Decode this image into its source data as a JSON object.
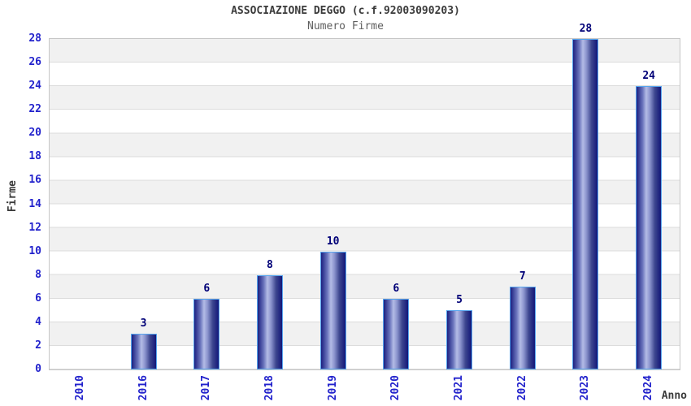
{
  "chart_data": {
    "type": "bar",
    "title": "ASSOCIAZIONE DEGGO (c.f.92003090203)",
    "subtitle": "Numero Firme",
    "categories": [
      "2010",
      "2016",
      "2017",
      "2018",
      "2019",
      "2020",
      "2021",
      "2022",
      "2023",
      "2024"
    ],
    "values": [
      0,
      3,
      6,
      8,
      10,
      6,
      5,
      7,
      28,
      24
    ],
    "xlabel": "Anno",
    "ylabel": "Firme",
    "ylim": [
      0,
      28
    ],
    "ytick_step": 2,
    "grid": "horizontal-bands-alternating",
    "legend": "none",
    "colors": {
      "bar_edge": "#1c2080",
      "bar_highlight": "#b4bce6",
      "bar_border": "#55a4ee",
      "value_label": "#000077",
      "tick_label": "#2222cc",
      "axis_title": "#3b3b3b",
      "title": "#3b3b3b",
      "subtitle": "#5f5f5f",
      "band_fill": "#f1f1f1",
      "grid_line": "#dcdcdc",
      "plot_border": "#c6c6c6",
      "background": "#ffffff"
    }
  }
}
